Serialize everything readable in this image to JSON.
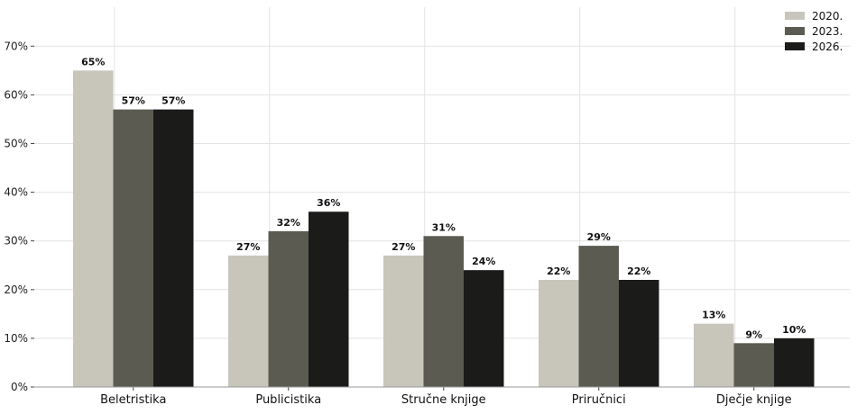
{
  "chart_data": {
    "type": "bar",
    "categories": [
      "Beletristika",
      "Publicistika",
      "Stručne knjige",
      "Priručnici",
      "Dječje knjige"
    ],
    "series": [
      {
        "name": "2020.",
        "color": "#c8c6bb",
        "values": [
          65,
          27,
          27,
          22,
          13
        ]
      },
      {
        "name": "2023.",
        "color": "#5b5b52",
        "values": [
          57,
          32,
          31,
          29,
          9
        ]
      },
      {
        "name": "2026.",
        "color": "#1b1b19",
        "values": [
          57,
          36,
          24,
          22,
          10
        ]
      }
    ],
    "value_suffix": "%",
    "ylim": [
      0,
      78
    ],
    "yticks": [
      0,
      10,
      20,
      30,
      40,
      50,
      60,
      70
    ],
    "ytick_labels": [
      "0%",
      "10%",
      "20%",
      "30%",
      "40%",
      "50%",
      "60%",
      "70%"
    ],
    "grid": true,
    "legend_position": "top-right",
    "title": "",
    "xlabel": "",
    "ylabel": ""
  }
}
